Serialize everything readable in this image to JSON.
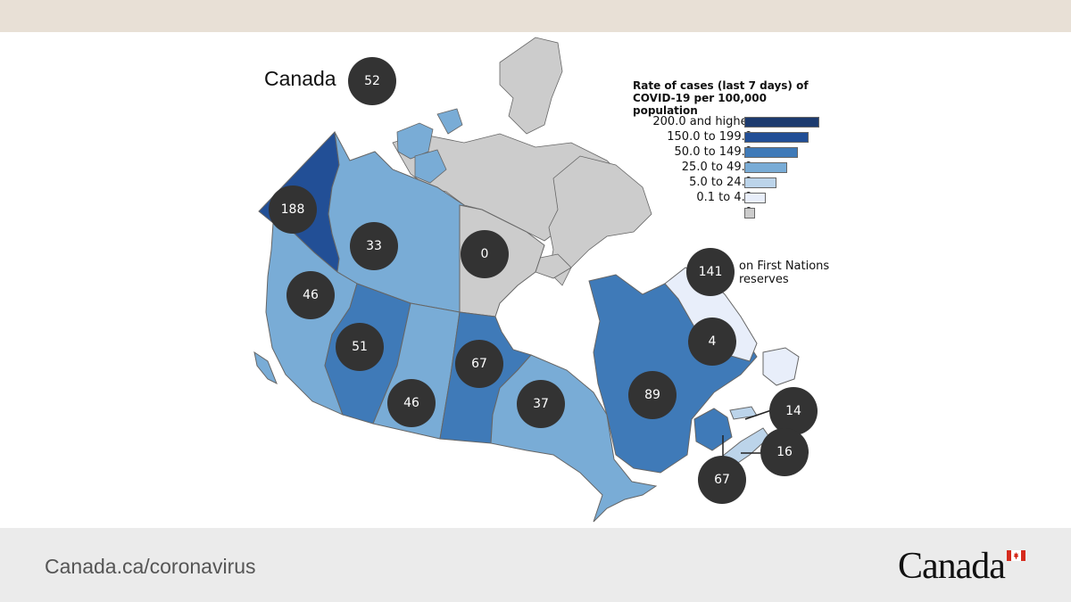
{
  "title": "Canada",
  "national_rate": "52",
  "legend": {
    "title": "Rate of cases (last 7 days) of COVID-19 per 100,000 population",
    "items": [
      {
        "label": "200.0 and higher",
        "color": "#1c3a6e"
      },
      {
        "label": "150.0 to 199.9",
        "color": "#224f96"
      },
      {
        "label": "50.0 to 149.9",
        "color": "#3f7ab8"
      },
      {
        "label": "25.0 to 49.9",
        "color": "#79acd6"
      },
      {
        "label": "5.0 to 24.9",
        "color": "#bcd4ea"
      },
      {
        "label": "0.1 to 4.9",
        "color": "#e8eefa"
      },
      {
        "label": "0",
        "color": "#cccccc"
      }
    ]
  },
  "regions": [
    {
      "name": "Yukon",
      "rate": "188",
      "color": "#224f96"
    },
    {
      "name": "Northwest Territories",
      "rate": "33",
      "color": "#79acd6"
    },
    {
      "name": "Nunavut",
      "rate": "0",
      "color": "#cccccc"
    },
    {
      "name": "British Columbia",
      "rate": "46",
      "color": "#79acd6"
    },
    {
      "name": "Alberta",
      "rate": "51",
      "color": "#3f7ab8"
    },
    {
      "name": "Saskatchewan",
      "rate": "46",
      "color": "#79acd6"
    },
    {
      "name": "Manitoba",
      "rate": "67",
      "color": "#3f7ab8"
    },
    {
      "name": "Ontario",
      "rate": "37",
      "color": "#79acd6"
    },
    {
      "name": "Quebec",
      "rate": "89",
      "color": "#3f7ab8"
    },
    {
      "name": "Newfoundland and Labrador",
      "rate": "4",
      "color": "#e8eefa"
    },
    {
      "name": "Prince Edward Island",
      "rate": "14",
      "color": "#bcd4ea"
    },
    {
      "name": "Nova Scotia",
      "rate": "16",
      "color": "#bcd4ea"
    },
    {
      "name": "New Brunswick",
      "rate": "67",
      "color": "#3f7ab8"
    }
  ],
  "first_nations": {
    "rate": "141",
    "label": "on First Nations reserves"
  },
  "footer": {
    "url": "Canada.ca/coronavirus",
    "wordmark": "Canada",
    "wordmark_image": "Canada wordmark with flag"
  }
}
